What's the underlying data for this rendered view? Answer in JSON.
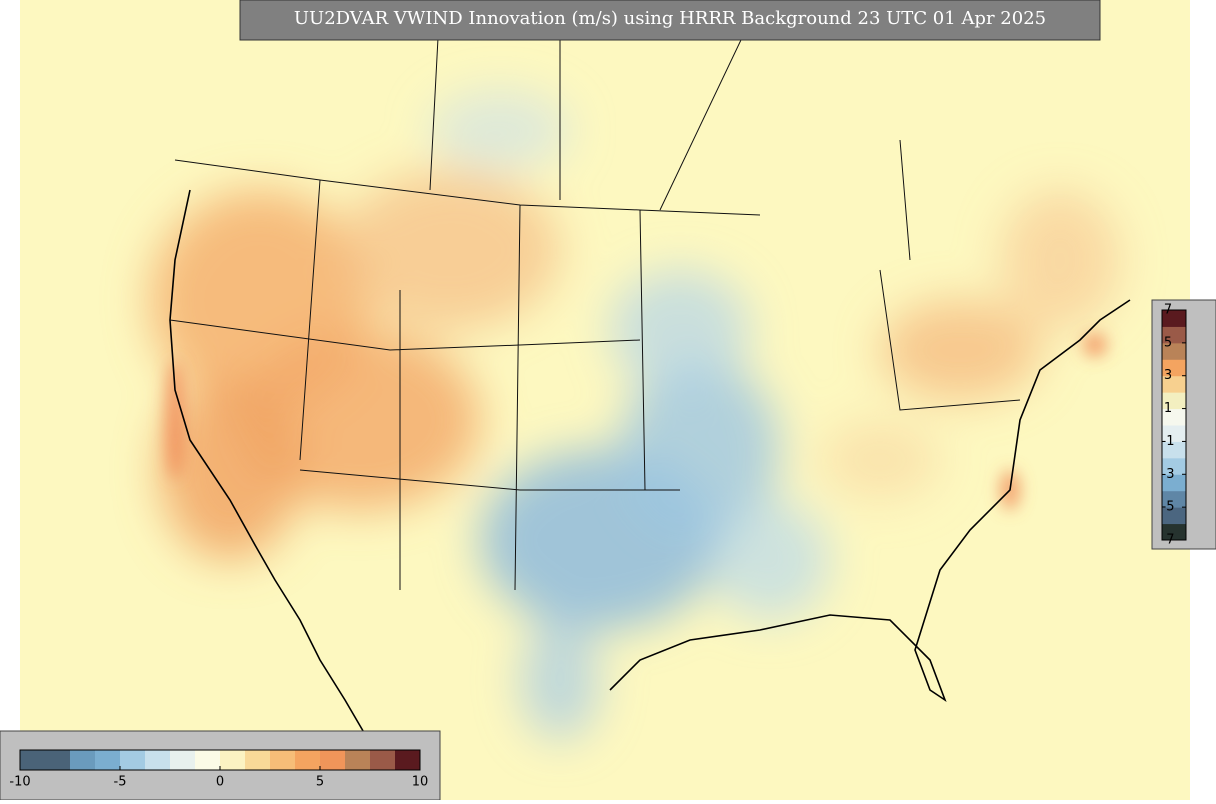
{
  "title": "UU2DVAR VWIND Innovation (m/s) using HRRR Background 23 UTC 01 Apr 2025",
  "colorbars": [
    {
      "orientation": "horizontal",
      "lim": [
        -10,
        10
      ],
      "ticks": [
        -10,
        -5,
        0,
        5,
        10
      ],
      "colors": [
        "#4a6378",
        "#4a6378",
        "#6a9bbd",
        "#7baed0",
        "#a3cbe3",
        "#c8e0ec",
        "#e8f1ee",
        "#fbfbe6",
        "#fbf3c2",
        "#f8d998",
        "#f6bd78",
        "#f4a460",
        "#f0955a",
        "#b98358",
        "#9a5a48",
        "#5a1a1f"
      ]
    },
    {
      "orientation": "vertical",
      "lim": [
        -7,
        7
      ],
      "ticks": [
        7,
        5,
        3,
        1,
        -1,
        -3,
        -5,
        -7
      ],
      "colors": [
        "#26332f",
        "#4b6680",
        "#5f86a6",
        "#7baed0",
        "#a3cbe3",
        "#c8e0ec",
        "#e4eef0",
        "#f6f8ee",
        "#f3efc0",
        "#f7d08f",
        "#f4a460",
        "#b98358",
        "#9a5a48",
        "#5a1a1f"
      ]
    }
  ]
}
